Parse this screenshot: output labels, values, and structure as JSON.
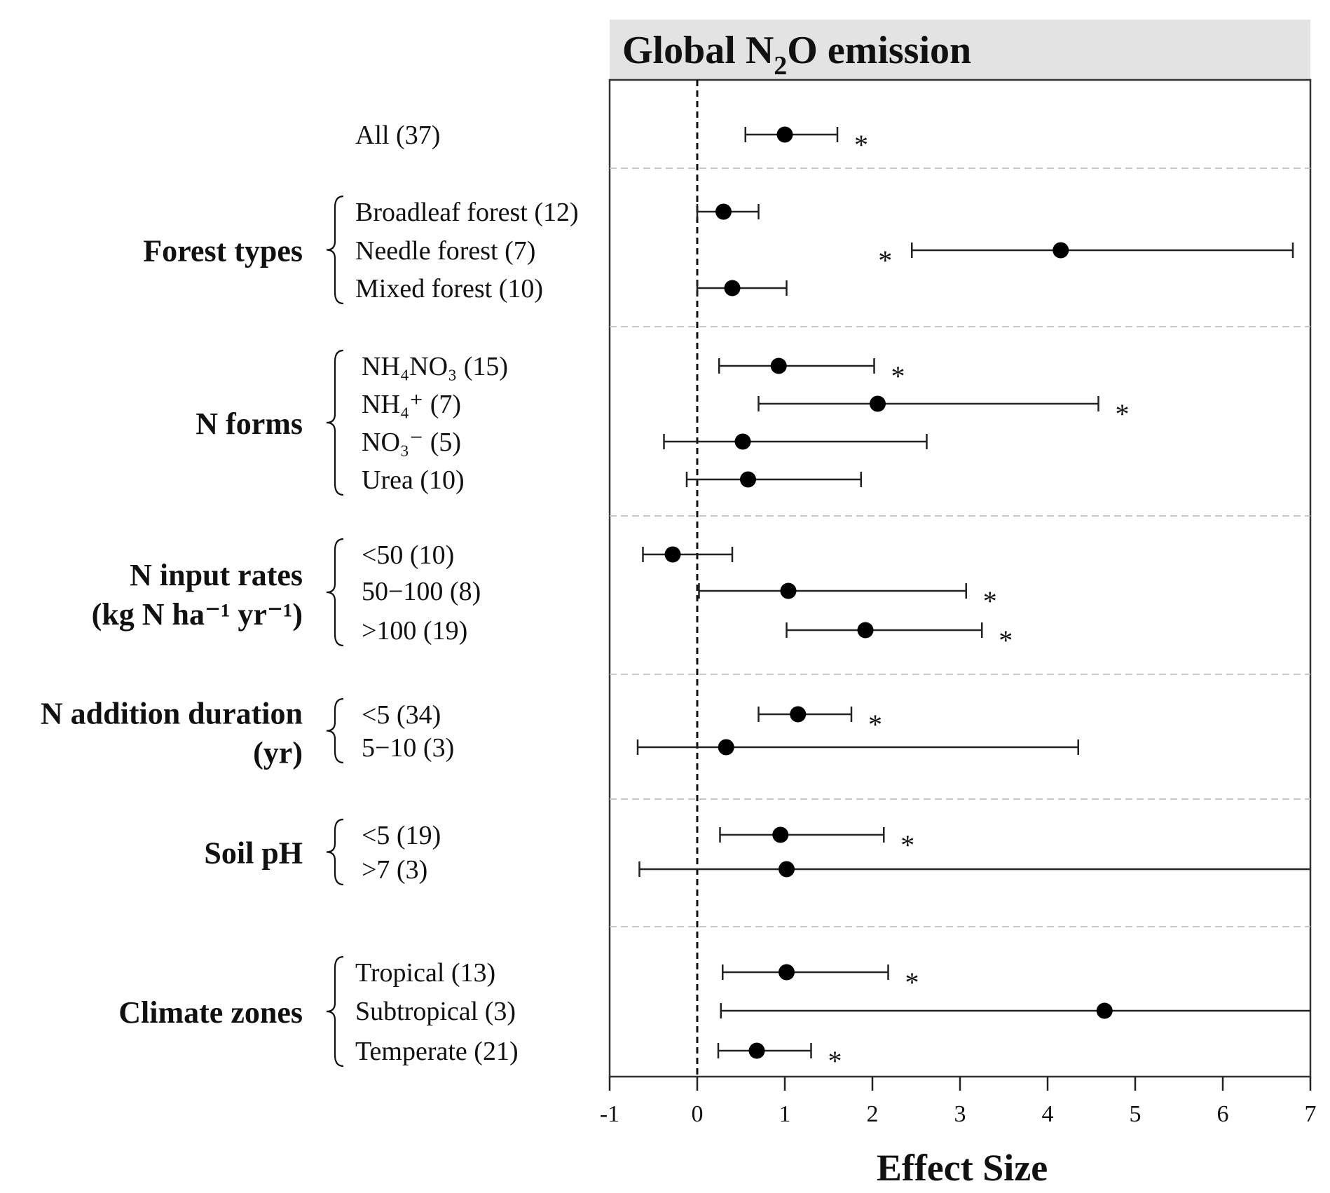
{
  "chart_data": {
    "type": "forest-plot",
    "title": {
      "prefix": "Global N",
      "sub": "2",
      "suffix": "O emission"
    },
    "xlabel": "Effect Size",
    "xlim": [
      -1,
      7
    ],
    "xticks": [
      "-1",
      "0",
      "1",
      "2",
      "3",
      "4",
      "5",
      "6",
      "7"
    ],
    "reference_line": 0,
    "groups": [
      {
        "name": "",
        "items": [
          {
            "label": "All (37)",
            "mean": 1.0,
            "lo": 0.55,
            "hi": 1.6,
            "sig": true
          }
        ]
      },
      {
        "name": "Forest types",
        "items": [
          {
            "label": "Broadleaf forest (12)",
            "mean": 0.3,
            "lo": 0.0,
            "hi": 0.7,
            "sig": false
          },
          {
            "label": "Needle forest (7)",
            "mean": 4.15,
            "lo": 2.45,
            "hi": 6.8,
            "sig": true,
            "star_side": "left"
          },
          {
            "label": "Mixed forest (10)",
            "mean": 0.4,
            "lo": 0.0,
            "hi": 1.02,
            "sig": false
          }
        ]
      },
      {
        "name": "N forms",
        "items": [
          {
            "label": "NH₄NO₃ (15)",
            "mean": 0.93,
            "lo": 0.25,
            "hi": 2.02,
            "sig": true
          },
          {
            "label": "NH₄⁺ (7)",
            "mean": 2.06,
            "lo": 0.7,
            "hi": 4.58,
            "sig": true
          },
          {
            "label": "NO₃⁻ (5)",
            "mean": 0.52,
            "lo": -0.38,
            "hi": 2.62,
            "sig": false
          },
          {
            "label": "Urea (10)",
            "mean": 0.58,
            "lo": -0.12,
            "hi": 1.87,
            "sig": false
          }
        ]
      },
      {
        "name": "N input rates",
        "name2": "(kg N ha⁻¹ yr⁻¹)",
        "items": [
          {
            "label": "<50 (10)",
            "mean": -0.28,
            "lo": -0.62,
            "hi": 0.4,
            "sig": false
          },
          {
            "label": "50−100 (8)",
            "mean": 1.04,
            "lo": 0.02,
            "hi": 3.07,
            "sig": true
          },
          {
            "label": ">100 (19)",
            "mean": 1.92,
            "lo": 1.02,
            "hi": 3.25,
            "sig": true
          }
        ]
      },
      {
        "name": "N addition duration",
        "name2": "(yr)",
        "items": [
          {
            "label": "<5 (34)",
            "mean": 1.15,
            "lo": 0.7,
            "hi": 1.76,
            "sig": true
          },
          {
            "label": "5−10 (3)",
            "mean": 0.33,
            "lo": -0.68,
            "hi": 4.35,
            "sig": false
          }
        ]
      },
      {
        "name": "Soil pH",
        "items": [
          {
            "label": "<5 (19)",
            "mean": 0.95,
            "lo": 0.26,
            "hi": 2.13,
            "sig": true
          },
          {
            "label": ">7 (3)",
            "mean": 1.02,
            "lo": -0.66,
            "hi": 7.0,
            "sig": false
          }
        ]
      },
      {
        "name": "Climate zones",
        "items": [
          {
            "label": "Tropical (13)",
            "mean": 1.02,
            "lo": 0.29,
            "hi": 2.18,
            "sig": true
          },
          {
            "label": "Subtropical (3)",
            "mean": 4.65,
            "lo": 0.27,
            "hi": 7.0,
            "sig": false
          },
          {
            "label": "Temperate (21)",
            "mean": 0.68,
            "lo": 0.24,
            "hi": 1.3,
            "sig": true
          }
        ]
      }
    ]
  }
}
